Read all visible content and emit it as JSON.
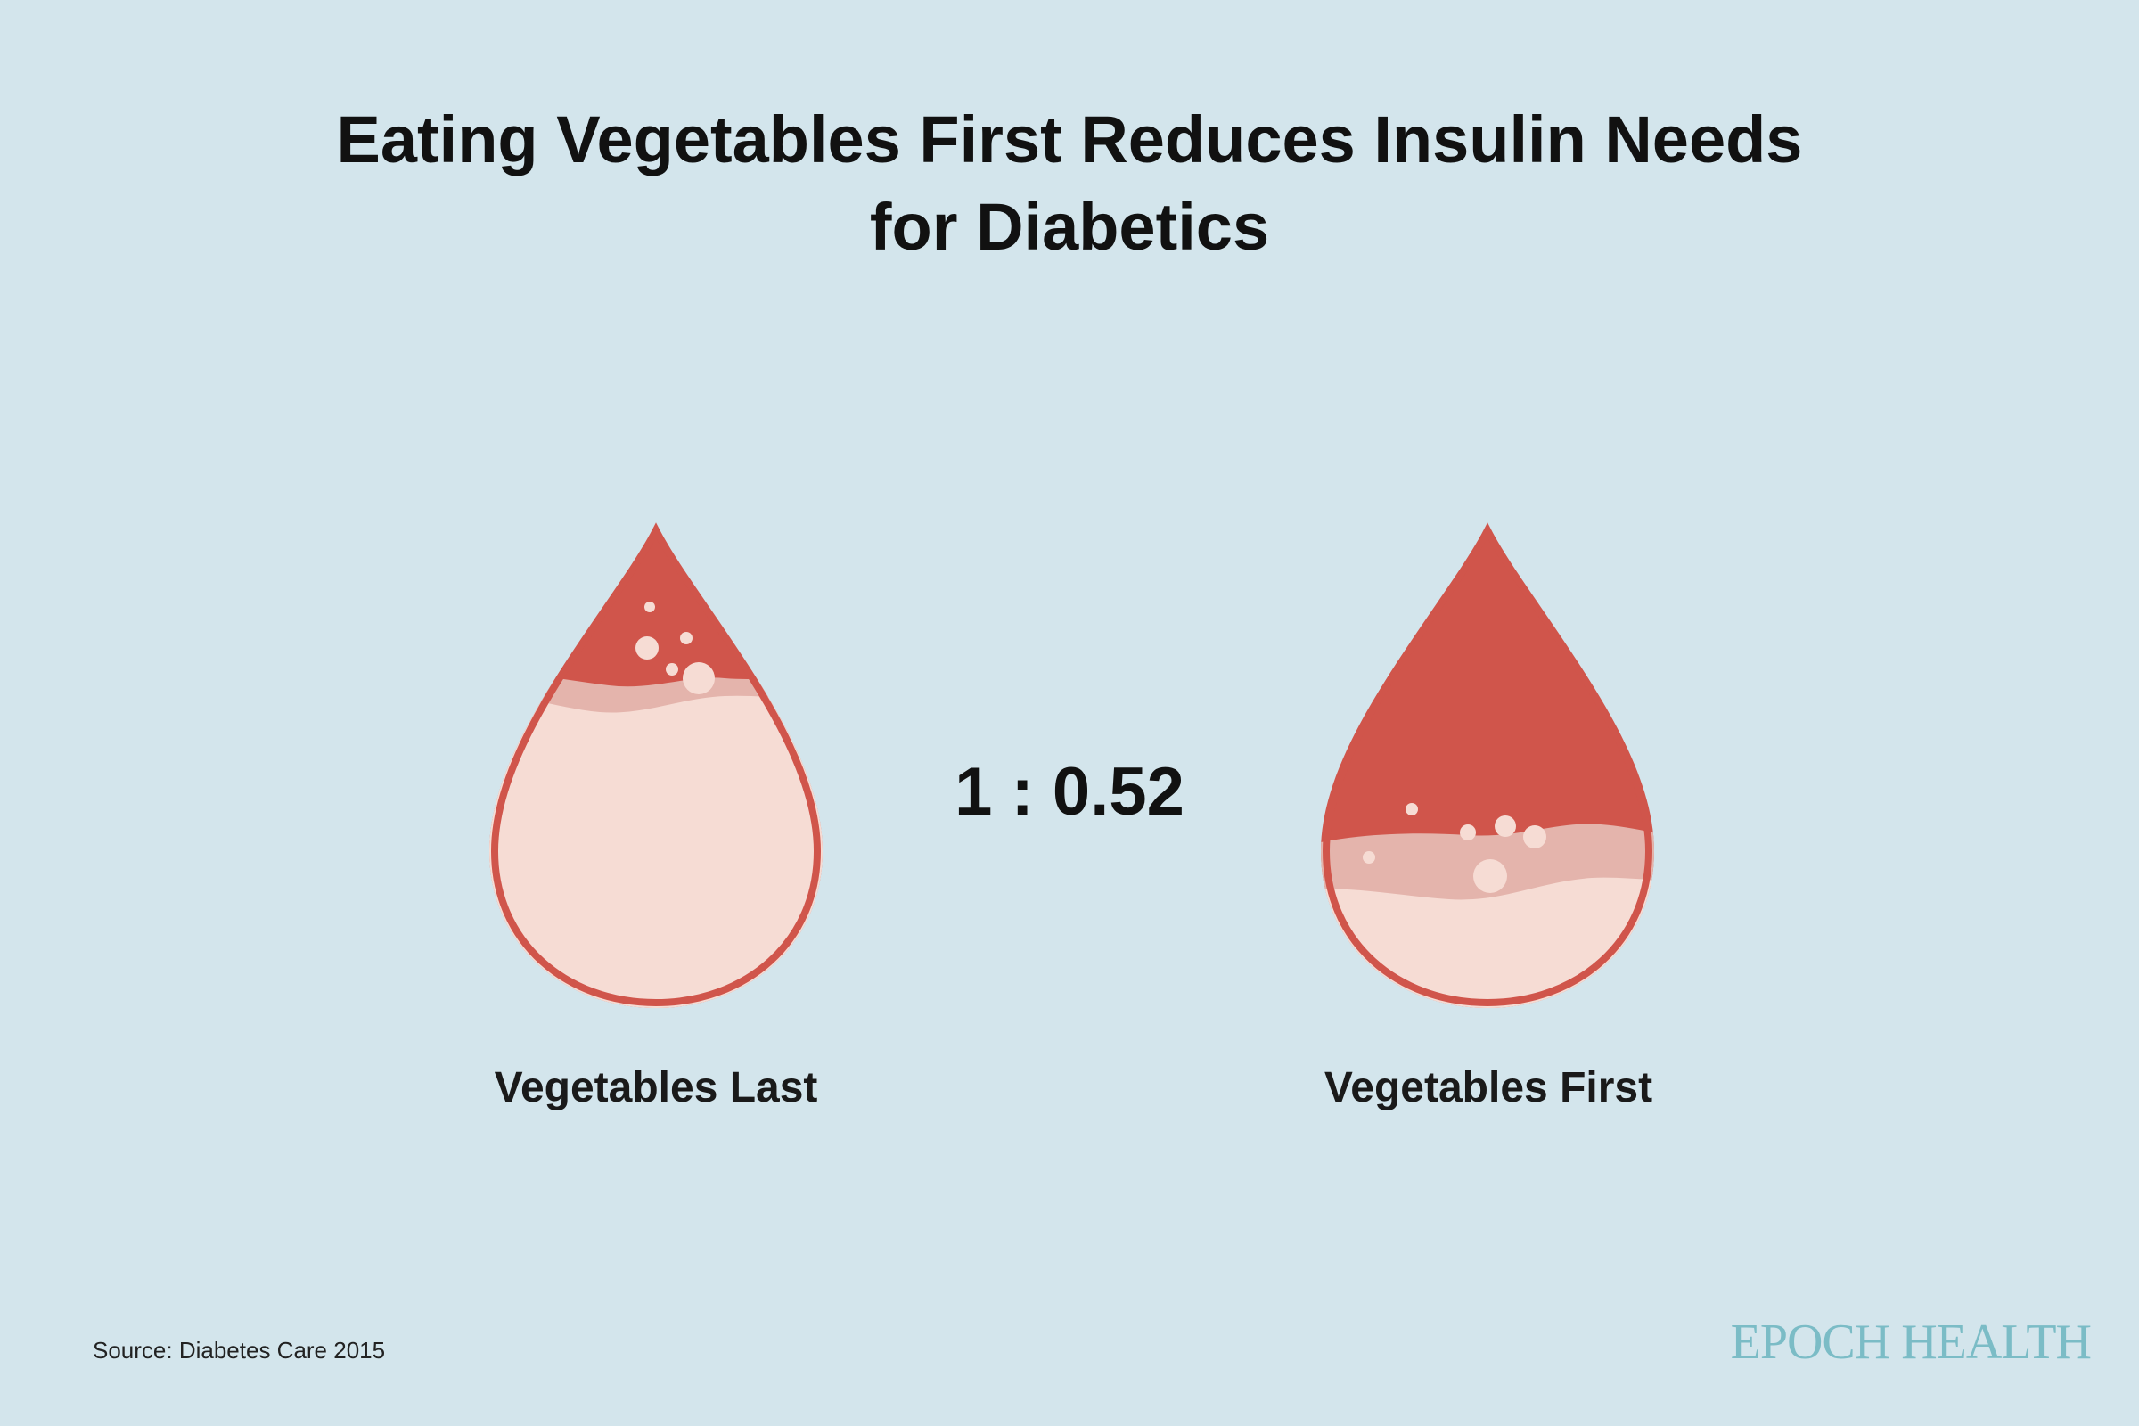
{
  "title": {
    "line1": "Eating Vegetables First Reduces Insulin Needs",
    "line2": "for Diabetics"
  },
  "ratio": "1 : 0.52",
  "drops": [
    {
      "label": "Vegetables Last"
    },
    {
      "label": "Vegetables First"
    }
  ],
  "source": "Source: Diabetes Care 2015",
  "brand": "EPOCH HEALTH",
  "colors": {
    "background": "#d3e5ec",
    "drop_red": "#d0554b",
    "drop_fill_light": "#f6dcd4",
    "drop_wave": "#e4b4ac",
    "brand": "#7bbcc6"
  }
}
